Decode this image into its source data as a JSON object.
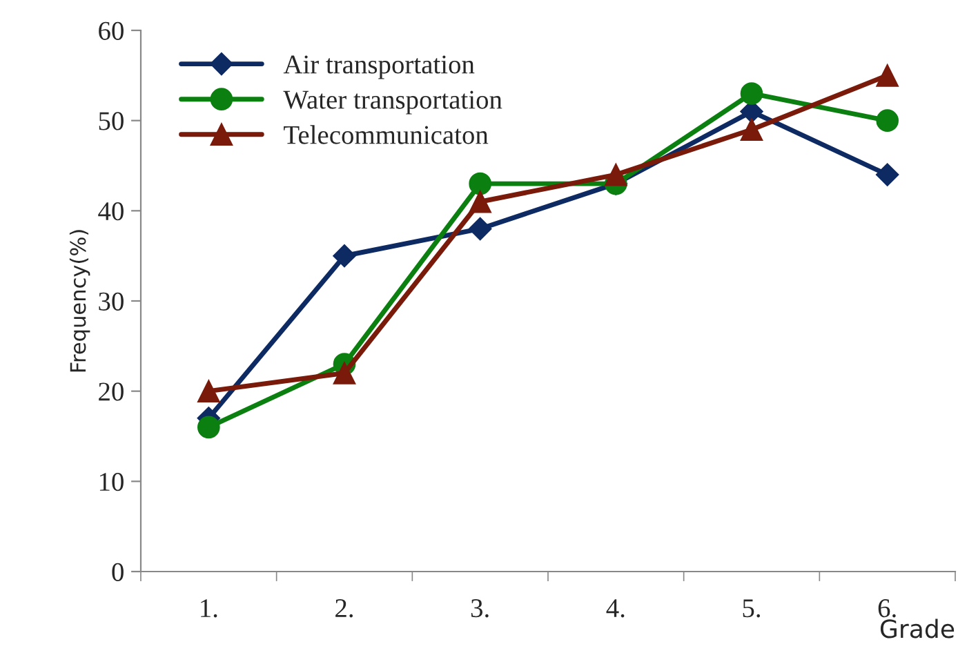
{
  "chart_data": {
    "type": "line",
    "xlabel": "Grade",
    "ylabel": "Frequency(%)",
    "categories": [
      "1.",
      "2.",
      "3.",
      "4.",
      "5.",
      "6."
    ],
    "series": [
      {
        "name": "Air transportation",
        "color": "#0d2a63",
        "values": [
          17,
          35,
          38,
          43,
          51,
          44
        ],
        "marker": "diamond"
      },
      {
        "name": "Water transportation",
        "color": "#0b8010",
        "values": [
          16,
          23,
          43,
          43,
          53,
          50
        ],
        "marker": "circle"
      },
      {
        "name": "Telecommunicaton",
        "color": "#7a1a0a",
        "values": [
          20,
          22,
          41,
          44,
          49,
          55
        ],
        "marker": "triangle"
      }
    ],
    "ylim": [
      0,
      60
    ],
    "yticks": [
      0,
      10,
      20,
      30,
      40,
      50,
      60
    ],
    "grid": false,
    "legend": "top left"
  }
}
